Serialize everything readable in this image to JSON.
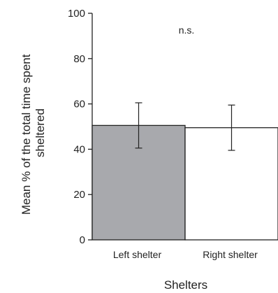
{
  "chart_data": {
    "type": "bar",
    "xlabel": "Shelters",
    "ylabel_lines": [
      "Mean %  of the total time spent",
      "sheltered"
    ],
    "categories": [
      "Left shelter",
      "Right shelter"
    ],
    "values": [
      50.5,
      49.5
    ],
    "error_upper": [
      60.5,
      59.5
    ],
    "error_lower": [
      40.5,
      39.5
    ],
    "ylim": [
      0,
      100
    ],
    "yticks": [
      0,
      20,
      40,
      60,
      80,
      100
    ],
    "annotation": "n.s.",
    "grid": false,
    "colors": [
      "#a8a9ad",
      "#ffffff"
    ],
    "edge_color": "#222222"
  }
}
